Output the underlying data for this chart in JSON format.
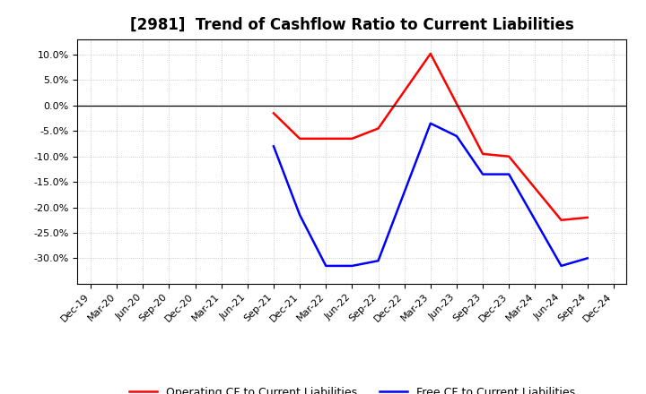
{
  "title": "[2981]  Trend of Cashflow Ratio to Current Liabilities",
  "x_labels": [
    "Dec-19",
    "Mar-20",
    "Jun-20",
    "Sep-20",
    "Dec-20",
    "Mar-21",
    "Jun-21",
    "Sep-21",
    "Dec-21",
    "Mar-22",
    "Jun-22",
    "Sep-22",
    "Dec-22",
    "Mar-23",
    "Jun-23",
    "Sep-23",
    "Dec-23",
    "Mar-24",
    "Jun-24",
    "Sep-24",
    "Dec-24"
  ],
  "operating_cf_points": {
    "Sep-21": -1.5,
    "Dec-21": -6.5,
    "Mar-22": -6.5,
    "Jun-22": -6.5,
    "Sep-22": -4.5,
    "Mar-23": 10.2,
    "Sep-23": -9.5,
    "Dec-23": -10.0,
    "Jun-24": -22.5,
    "Sep-24": -22.0
  },
  "free_cf_points": {
    "Sep-21": -8.0,
    "Dec-21": -21.5,
    "Mar-22": -31.5,
    "Jun-22": -31.5,
    "Sep-22": -30.5,
    "Mar-23": -3.5,
    "Jun-23": -6.0,
    "Sep-23": -13.5,
    "Dec-23": -13.5,
    "Jun-24": -31.5,
    "Sep-24": -30.0
  },
  "ylim": [
    -35,
    13
  ],
  "yticks": [
    -30,
    -25,
    -20,
    -15,
    -10,
    -5,
    0,
    5,
    10
  ],
  "operating_color": "#FF0000",
  "free_color": "#0000FF",
  "background_color": "#FFFFFF",
  "grid_color": "#BBBBBB",
  "legend_labels": [
    "Operating CF to Current Liabilities",
    "Free CF to Current Liabilities"
  ],
  "title_fontsize": 12,
  "tick_fontsize": 8,
  "legend_fontsize": 9
}
